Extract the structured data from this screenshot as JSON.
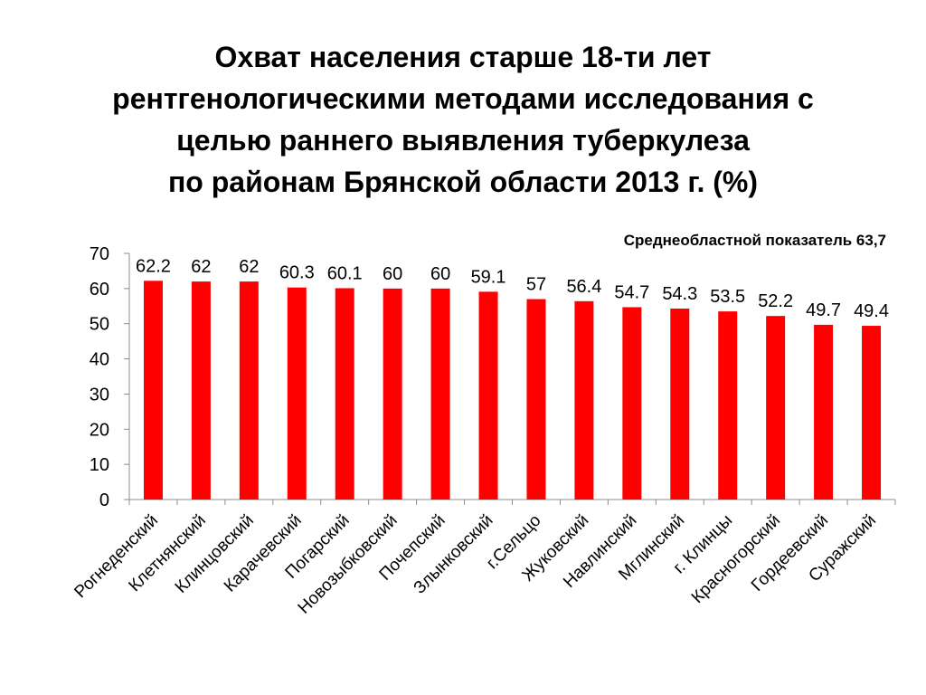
{
  "title_lines": [
    "Охват населения старше 18-ти лет",
    "рентгенологическими методами исследования с",
    "целью раннего выявления туберкулеза",
    "по районам Брянской области 2013 г. (%)"
  ],
  "note": "Среднеобластной показатель 63,7",
  "colors": {
    "bar": "#ff0000",
    "axis": "#8c8c8c"
  },
  "chart_data": {
    "type": "bar",
    "title": "Охват населения старше 18-ти лет рентгенологическими методами исследования с целью раннего выявления туберкулеза по районам Брянской области 2013 г. (%)",
    "categories": [
      "Рогнеденский",
      "Клетнянский",
      "Клинцовский",
      "Карачевский",
      "Погарский",
      "Новозыбковский",
      "Почепский",
      "Злынковский",
      "г.Сельцо",
      "Жуковский",
      "Навлинский",
      "Мглинский",
      "г. Клинцы",
      "Красногорский",
      "Гордеевский",
      "Суражский"
    ],
    "values": [
      62.2,
      62,
      62,
      60.3,
      60.1,
      60,
      60,
      59.1,
      57,
      56.4,
      54.7,
      54.3,
      53.5,
      52.2,
      49.7,
      49.4
    ],
    "value_labels": [
      "62.2",
      "62",
      "62",
      "60.3",
      "60.1",
      "60",
      "60",
      "59.1",
      "57",
      "56.4",
      "54.7",
      "54.3",
      "53.5",
      "52.2",
      "49.7",
      "49.4"
    ],
    "ylim": [
      0,
      70
    ],
    "yticks": [
      0,
      10,
      20,
      30,
      40,
      50,
      60,
      70
    ],
    "grid": false,
    "legend": "none",
    "xlabel": "",
    "ylabel": ""
  }
}
